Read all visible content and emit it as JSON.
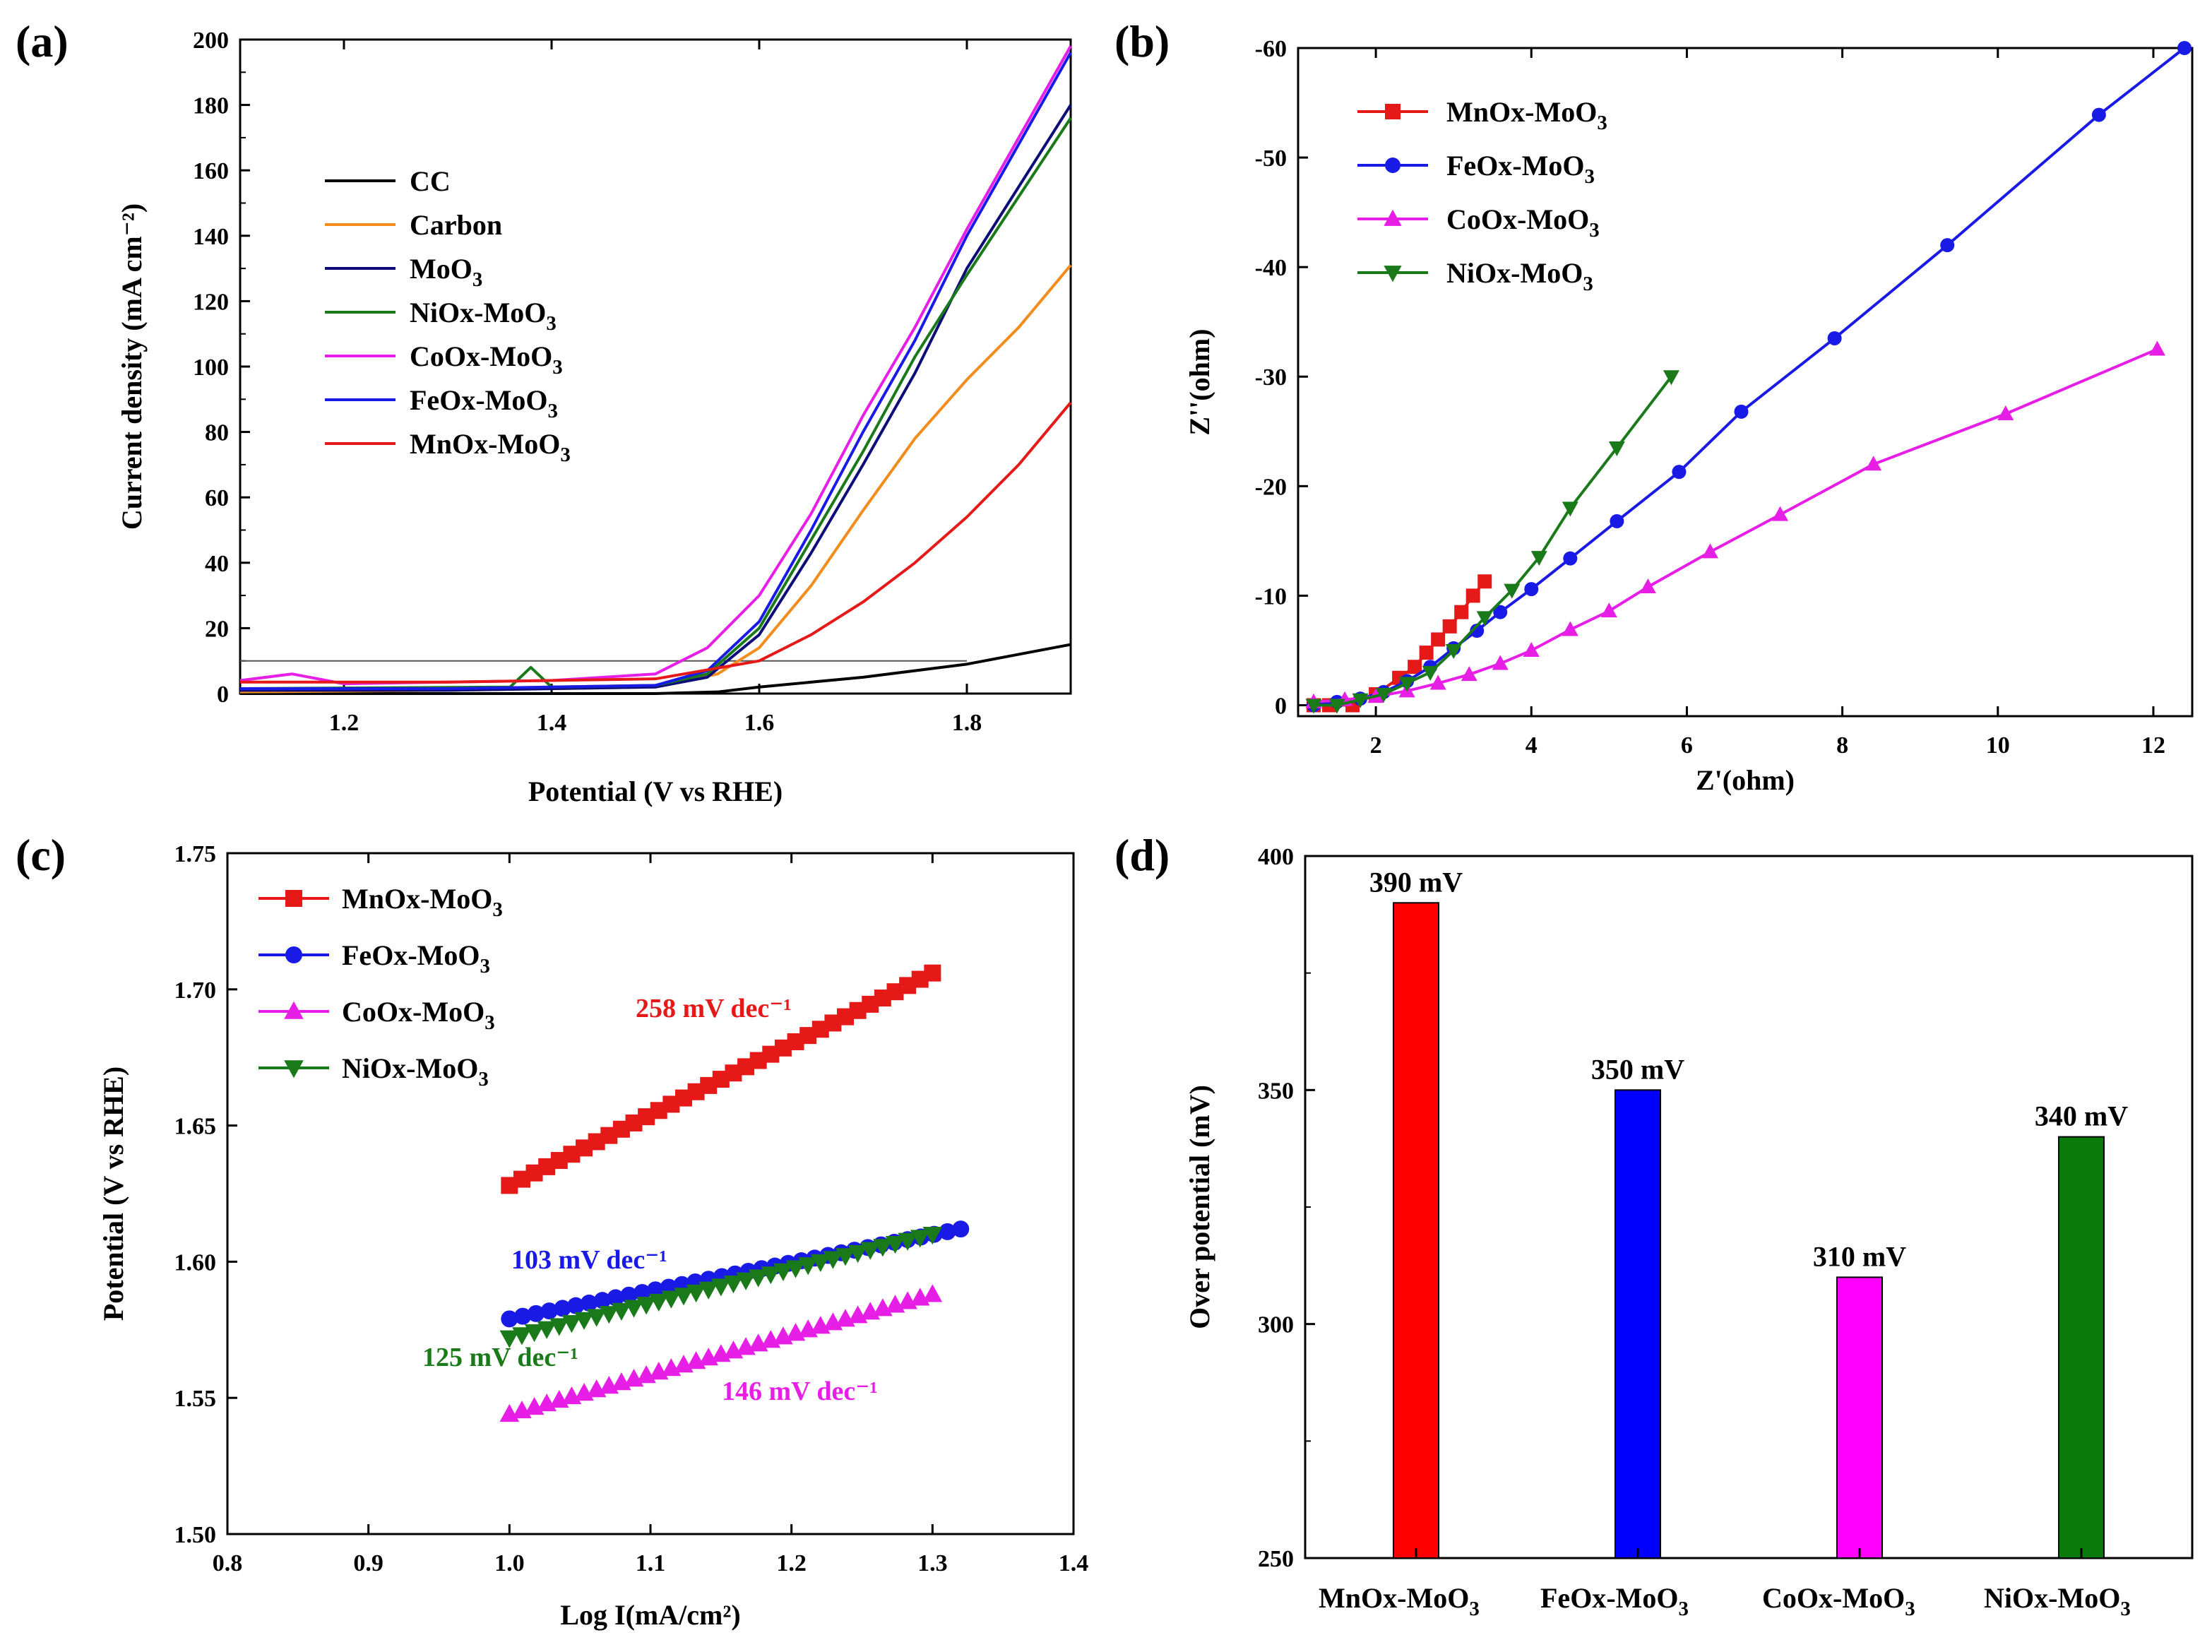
{
  "chart_data": [
    {
      "panel": "(a)",
      "type": "line",
      "xlabel": "Potential (V vs RHE)",
      "ylabel": "Current density (mA cm⁻²)",
      "xlim": [
        1.1,
        1.9
      ],
      "ylim": [
        0,
        200
      ],
      "xticks": [
        1.2,
        1.4,
        1.6,
        1.8
      ],
      "yticks": [
        0,
        20,
        40,
        60,
        80,
        100,
        120,
        140,
        160,
        180,
        200
      ],
      "legend": "center-left",
      "reference_line_y": 10,
      "series": [
        {
          "name": "CC",
          "color": "#000000",
          "x": [
            1.1,
            1.5,
            1.56,
            1.6,
            1.7,
            1.8,
            1.85,
            1.9
          ],
          "y": [
            0,
            0,
            0.5,
            2,
            5,
            9,
            12,
            15
          ]
        },
        {
          "name": "Carbon",
          "color": "#f28c1c",
          "x": [
            1.1,
            1.3,
            1.5,
            1.56,
            1.6,
            1.65,
            1.7,
            1.75,
            1.8,
            1.85,
            1.9
          ],
          "y": [
            0.5,
            1,
            2,
            6,
            14,
            33,
            56,
            78,
            96,
            112,
            131
          ]
        },
        {
          "name": "MoO3",
          "color": "#0d0d7a",
          "x": [
            1.1,
            1.3,
            1.5,
            1.55,
            1.6,
            1.65,
            1.7,
            1.75,
            1.8,
            1.85,
            1.9
          ],
          "y": [
            1,
            1,
            2,
            5,
            18,
            43,
            70,
            98,
            130,
            155,
            180
          ]
        },
        {
          "name": "NiOx-MoO3",
          "color": "#1a7a1a",
          "x": [
            1.1,
            1.36,
            1.38,
            1.4,
            1.5,
            1.55,
            1.6,
            1.65,
            1.7,
            1.75,
            1.8,
            1.85,
            1.9
          ],
          "y": [
            1.5,
            2,
            8,
            2,
            2.5,
            6,
            20,
            47,
            74,
            103,
            128,
            152,
            176
          ]
        },
        {
          "name": "CoOx-MoO3",
          "color": "#e61ee6",
          "x": [
            1.1,
            1.15,
            1.2,
            1.4,
            1.5,
            1.55,
            1.6,
            1.65,
            1.7,
            1.75,
            1.8,
            1.85,
            1.9
          ],
          "y": [
            4,
            6,
            3,
            4,
            6,
            14,
            30,
            55,
            85,
            112,
            142,
            170,
            198
          ]
        },
        {
          "name": "FeOx-MoO3",
          "color": "#1a1ae6",
          "x": [
            1.1,
            1.3,
            1.5,
            1.55,
            1.6,
            1.65,
            1.7,
            1.75,
            1.8,
            1.85,
            1.9
          ],
          "y": [
            1.5,
            1.5,
            2.5,
            7,
            22,
            50,
            80,
            108,
            140,
            168,
            196
          ]
        },
        {
          "name": "MnOx-MoO3",
          "color": "#e61919",
          "x": [
            1.1,
            1.3,
            1.5,
            1.6,
            1.65,
            1.7,
            1.75,
            1.8,
            1.85,
            1.9
          ],
          "y": [
            3.5,
            3.5,
            4.5,
            10,
            18,
            28,
            40,
            54,
            70,
            89
          ]
        }
      ]
    },
    {
      "panel": "(b)",
      "type": "scatter",
      "xlabel": "Z'(ohm)",
      "ylabel": "Z''(ohm)",
      "xlim": [
        1,
        12.5
      ],
      "ylim": [
        1,
        -60
      ],
      "xticks": [
        2,
        4,
        6,
        8,
        10,
        12
      ],
      "yticks": [
        0,
        -10,
        -20,
        -30,
        -40,
        -50,
        -60
      ],
      "legend": "top-left",
      "series": [
        {
          "name": "MnOx-MoO3",
          "color": "#e61919",
          "marker": "square",
          "x": [
            1.2,
            1.4,
            1.7,
            2.0,
            2.3,
            2.5,
            2.65,
            2.8,
            2.95,
            3.1,
            3.25,
            3.4
          ],
          "y": [
            0,
            0,
            0,
            -1,
            -2.5,
            -3.5,
            -4.8,
            -6,
            -7.2,
            -8.5,
            -10,
            -11.3
          ]
        },
        {
          "name": "FeOx-MoO3",
          "color": "#1a1ae6",
          "marker": "circle",
          "x": [
            1.2,
            1.5,
            1.8,
            2.1,
            2.4,
            2.7,
            3.0,
            3.3,
            3.6,
            4.0,
            4.5,
            5.1,
            5.9,
            6.7,
            7.9,
            9.35,
            11.3,
            12.4
          ],
          "y": [
            0,
            -0.3,
            -0.6,
            -1.2,
            -2.2,
            -3.5,
            -5.2,
            -6.8,
            -8.5,
            -10.6,
            -13.4,
            -16.8,
            -21.3,
            -26.8,
            -33.5,
            -42,
            -53.9,
            -60
          ]
        },
        {
          "name": "CoOx-MoO3",
          "color": "#e61ee6",
          "marker": "triangle-up",
          "x": [
            1.2,
            1.6,
            2.0,
            2.4,
            2.8,
            3.2,
            3.6,
            4.0,
            4.5,
            5.0,
            5.5,
            6.3,
            7.2,
            8.4,
            10.1,
            12.05
          ],
          "y": [
            -0.3,
            -0.5,
            -0.8,
            -1.3,
            -2,
            -2.8,
            -3.8,
            -5,
            -6.9,
            -8.6,
            -10.8,
            -14,
            -17.4,
            -22,
            -26.6,
            -32.5
          ]
        },
        {
          "name": "NiOx-MoO3",
          "color": "#1a7a1a",
          "marker": "triangle-down",
          "x": [
            1.2,
            1.5,
            1.8,
            2.1,
            2.4,
            2.7,
            3.0,
            3.4,
            3.75,
            4.1,
            4.5,
            5.1,
            5.8
          ],
          "y": [
            0,
            0,
            -0.5,
            -1,
            -2,
            -3,
            -5,
            -8,
            -10.5,
            -13.5,
            -18,
            -23.5,
            -30
          ]
        }
      ]
    },
    {
      "panel": "(c)",
      "type": "scatter",
      "xlabel": "Log I(mA/cm²)",
      "ylabel": "Potential (V vs RHE)",
      "xlim": [
        0.8,
        1.4
      ],
      "ylim": [
        1.5,
        1.75
      ],
      "xticks": [
        0.8,
        0.9,
        1.0,
        1.1,
        1.2,
        1.3,
        1.4
      ],
      "yticks": [
        1.5,
        1.55,
        1.6,
        1.65,
        1.7,
        1.75
      ],
      "legend": "top-left",
      "series": [
        {
          "name": "MnOx-MoO3",
          "color": "#e61919",
          "marker": "square",
          "x_range": [
            1.0,
            1.3
          ],
          "y_range": [
            1.628,
            1.706
          ],
          "slope_label": "258 mV dec⁻¹"
        },
        {
          "name": "FeOx-MoO3",
          "color": "#1a1ae6",
          "marker": "circle",
          "x_range": [
            1.0,
            1.32
          ],
          "y_range": [
            1.579,
            1.612
          ],
          "slope_label": "103 mV dec⁻¹"
        },
        {
          "name": "CoOx-MoO3",
          "color": "#e61ee6",
          "marker": "triangle-up",
          "x_range": [
            1.0,
            1.3
          ],
          "y_range": [
            1.544,
            1.588
          ],
          "slope_label": "146 mV dec⁻¹"
        },
        {
          "name": "NiOx-MoO3",
          "color": "#1a7a1a",
          "marker": "triangle-down",
          "x_range": [
            1.0,
            1.3
          ],
          "y_range": [
            1.572,
            1.61
          ],
          "slope_label": "125 mV dec⁻¹"
        }
      ]
    },
    {
      "panel": "(d)",
      "type": "bar",
      "xlabel": "",
      "ylabel": "Over potential (mV)",
      "ylim": [
        250,
        400
      ],
      "yticks": [
        250,
        300,
        350,
        400
      ],
      "categories": [
        "MnOx-MoO3",
        "FeOx-MoO3",
        "CoOx-MoO3",
        "NiOx-MoO3"
      ],
      "values": [
        390,
        350,
        310,
        340
      ],
      "labels": [
        "390 mV",
        "350 mV",
        "310 mV",
        "340 mV"
      ],
      "colors": [
        "#ff0000",
        "#0000ff",
        "#ff00ff",
        "#0a7a0a"
      ]
    }
  ]
}
